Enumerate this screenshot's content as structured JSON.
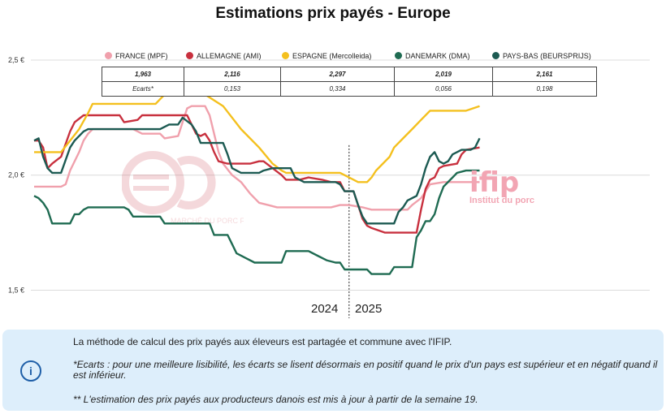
{
  "title": "Estimations prix payés - Europe",
  "chart_data": {
    "type": "line",
    "title": "Estimations prix payés - Europe",
    "y_ticks": [
      "2,5 €",
      "2,0 €",
      "1,5 €"
    ],
    "ylim": [
      1.35,
      2.62
    ],
    "x_range": [
      0,
      100
    ],
    "year_split": 70,
    "years": [
      "2024",
      "2025"
    ],
    "series": [
      {
        "name": "FRANCE (MPF)",
        "color": "#f0a0ac",
        "points": [
          [
            0,
            1.95
          ],
          [
            6,
            1.95
          ],
          [
            7,
            1.96
          ],
          [
            8,
            2.02
          ],
          [
            10,
            2.1
          ],
          [
            11,
            2.15
          ],
          [
            12,
            2.18
          ],
          [
            13,
            2.2
          ],
          [
            22,
            2.2
          ],
          [
            24,
            2.18
          ],
          [
            28,
            2.18
          ],
          [
            29,
            2.16
          ],
          [
            32,
            2.17
          ],
          [
            33,
            2.23
          ],
          [
            34,
            2.29
          ],
          [
            35,
            2.3
          ],
          [
            38,
            2.3
          ],
          [
            39,
            2.26
          ],
          [
            40,
            2.18
          ],
          [
            41,
            2.1
          ],
          [
            42,
            2.05
          ],
          [
            44,
            2.0
          ],
          [
            46,
            1.97
          ],
          [
            48,
            1.92
          ],
          [
            50,
            1.88
          ],
          [
            52,
            1.87
          ],
          [
            54,
            1.86
          ],
          [
            66,
            1.86
          ],
          [
            68,
            1.87
          ],
          [
            70,
            1.87
          ],
          [
            73,
            1.86
          ],
          [
            75,
            1.85
          ],
          [
            83,
            1.85
          ],
          [
            84,
            1.87
          ],
          [
            86,
            1.9
          ],
          [
            87,
            1.93
          ],
          [
            88,
            1.96
          ],
          [
            91,
            1.97
          ],
          [
            99,
            1.97
          ]
        ]
      },
      {
        "name": "ALLEMAGNE (AMI)",
        "color": "#c8303e",
        "points": [
          [
            0,
            2.15
          ],
          [
            1,
            2.15
          ],
          [
            2,
            2.12
          ],
          [
            3,
            2.03
          ],
          [
            4,
            2.05
          ],
          [
            6,
            2.08
          ],
          [
            8,
            2.19
          ],
          [
            9,
            2.23
          ],
          [
            11,
            2.26
          ],
          [
            19,
            2.26
          ],
          [
            20,
            2.23
          ],
          [
            23,
            2.24
          ],
          [
            24,
            2.26
          ],
          [
            34,
            2.26
          ],
          [
            35,
            2.22
          ],
          [
            36,
            2.18
          ],
          [
            37,
            2.17
          ],
          [
            38,
            2.18
          ],
          [
            39,
            2.15
          ],
          [
            40,
            2.1
          ],
          [
            41,
            2.06
          ],
          [
            43,
            2.05
          ],
          [
            47,
            2.05
          ],
          [
            48,
            2.05
          ],
          [
            50,
            2.06
          ],
          [
            51,
            2.06
          ],
          [
            53,
            2.03
          ],
          [
            55,
            2.0
          ],
          [
            56,
            1.98
          ],
          [
            59,
            1.98
          ],
          [
            61,
            1.99
          ],
          [
            64,
            1.98
          ],
          [
            66,
            1.97
          ],
          [
            68,
            1.97
          ],
          [
            69,
            1.93
          ],
          [
            71,
            1.93
          ],
          [
            72,
            1.87
          ],
          [
            73,
            1.81
          ],
          [
            74,
            1.78
          ],
          [
            75,
            1.77
          ],
          [
            78,
            1.75
          ],
          [
            85,
            1.75
          ],
          [
            86,
            1.85
          ],
          [
            87,
            1.94
          ],
          [
            88,
            1.98
          ],
          [
            89,
            1.99
          ],
          [
            90,
            2.03
          ],
          [
            91,
            2.04
          ],
          [
            94,
            2.05
          ],
          [
            95,
            2.09
          ],
          [
            96,
            2.11
          ],
          [
            99,
            2.12
          ]
        ]
      },
      {
        "name": "ESPAGNE (Mercolleida)",
        "color": "#f4c01e",
        "points": [
          [
            0,
            2.1
          ],
          [
            4,
            2.1
          ],
          [
            6,
            2.1
          ],
          [
            8,
            2.15
          ],
          [
            10,
            2.2
          ],
          [
            12,
            2.27
          ],
          [
            13,
            2.31
          ],
          [
            22,
            2.31
          ],
          [
            23,
            2.31
          ],
          [
            27,
            2.31
          ],
          [
            28,
            2.33
          ],
          [
            30,
            2.37
          ],
          [
            32,
            2.38
          ],
          [
            34,
            2.38
          ],
          [
            37,
            2.38
          ],
          [
            38,
            2.35
          ],
          [
            42,
            2.3
          ],
          [
            46,
            2.2
          ],
          [
            50,
            2.12
          ],
          [
            53,
            2.05
          ],
          [
            55,
            2.02
          ],
          [
            56,
            2.01
          ],
          [
            66,
            2.01
          ],
          [
            68,
            2.01
          ],
          [
            70,
            1.99
          ],
          [
            72,
            1.97
          ],
          [
            74,
            1.97
          ],
          [
            75,
            1.99
          ],
          [
            76,
            2.02
          ],
          [
            79,
            2.08
          ],
          [
            80,
            2.12
          ],
          [
            82,
            2.16
          ],
          [
            84,
            2.2
          ],
          [
            86,
            2.24
          ],
          [
            88,
            2.28
          ],
          [
            92,
            2.28
          ],
          [
            96,
            2.28
          ],
          [
            99,
            2.3
          ]
        ]
      },
      {
        "name": "DANEMARK (DMA)",
        "color": "#1f6b52",
        "points": [
          [
            0,
            1.91
          ],
          [
            1,
            1.9
          ],
          [
            2,
            1.88
          ],
          [
            3,
            1.85
          ],
          [
            4,
            1.79
          ],
          [
            8,
            1.79
          ],
          [
            9,
            1.83
          ],
          [
            10,
            1.83
          ],
          [
            11,
            1.85
          ],
          [
            12,
            1.86
          ],
          [
            20,
            1.86
          ],
          [
            21,
            1.85
          ],
          [
            22,
            1.82
          ],
          [
            28,
            1.82
          ],
          [
            29,
            1.79
          ],
          [
            33,
            1.79
          ],
          [
            34,
            1.79
          ],
          [
            39,
            1.79
          ],
          [
            40,
            1.74
          ],
          [
            43,
            1.74
          ],
          [
            44,
            1.7
          ],
          [
            45,
            1.66
          ],
          [
            47,
            1.64
          ],
          [
            49,
            1.62
          ],
          [
            55,
            1.62
          ],
          [
            56,
            1.67
          ],
          [
            61,
            1.67
          ],
          [
            63,
            1.65
          ],
          [
            65,
            1.63
          ],
          [
            67,
            1.62
          ],
          [
            68,
            1.62
          ],
          [
            69,
            1.59
          ],
          [
            72,
            1.59
          ],
          [
            74,
            1.59
          ],
          [
            75,
            1.57
          ],
          [
            79,
            1.57
          ],
          [
            80,
            1.6
          ],
          [
            84,
            1.6
          ],
          [
            85,
            1.73
          ],
          [
            86,
            1.76
          ],
          [
            87,
            1.8
          ],
          [
            88,
            1.8
          ],
          [
            89,
            1.83
          ],
          [
            90,
            1.9
          ],
          [
            91,
            1.95
          ],
          [
            93,
            1.99
          ],
          [
            94,
            2.01
          ],
          [
            96,
            2.02
          ],
          [
            98,
            2.02
          ],
          [
            99,
            2.02
          ]
        ]
      },
      {
        "name": "PAYS-BAS (BEURSPRIJS)",
        "color": "#1c5a52",
        "points": [
          [
            0,
            2.15
          ],
          [
            1,
            2.16
          ],
          [
            2,
            2.08
          ],
          [
            3,
            2.03
          ],
          [
            4,
            2.01
          ],
          [
            6,
            2.01
          ],
          [
            8,
            2.12
          ],
          [
            9,
            2.15
          ],
          [
            11,
            2.19
          ],
          [
            12,
            2.2
          ],
          [
            28,
            2.2
          ],
          [
            30,
            2.22
          ],
          [
            32,
            2.22
          ],
          [
            33,
            2.25
          ],
          [
            35,
            2.22
          ],
          [
            36,
            2.19
          ],
          [
            37,
            2.14
          ],
          [
            39,
            2.14
          ],
          [
            42,
            2.14
          ],
          [
            43,
            2.09
          ],
          [
            44,
            2.03
          ],
          [
            46,
            2.01
          ],
          [
            50,
            2.01
          ],
          [
            51,
            2.02
          ],
          [
            53,
            2.03
          ],
          [
            55,
            2.03
          ],
          [
            57,
            2.03
          ],
          [
            58,
            1.99
          ],
          [
            60,
            1.97
          ],
          [
            63,
            1.97
          ],
          [
            65,
            1.97
          ],
          [
            67,
            1.97
          ],
          [
            68,
            1.96
          ],
          [
            69,
            1.93
          ],
          [
            71,
            1.93
          ],
          [
            72,
            1.87
          ],
          [
            73,
            1.82
          ],
          [
            74,
            1.79
          ],
          [
            80,
            1.79
          ],
          [
            81,
            1.84
          ],
          [
            82,
            1.86
          ],
          [
            83,
            1.89
          ],
          [
            85,
            1.91
          ],
          [
            86,
            1.96
          ],
          [
            87,
            2.03
          ],
          [
            88,
            2.08
          ],
          [
            89,
            2.1
          ],
          [
            90,
            2.06
          ],
          [
            91,
            2.05
          ],
          [
            92,
            2.06
          ],
          [
            93,
            2.09
          ],
          [
            95,
            2.11
          ],
          [
            97,
            2.11
          ],
          [
            98,
            2.12
          ],
          [
            99,
            2.16
          ]
        ]
      }
    ]
  },
  "legend": [
    {
      "label": "FRANCE (MPF)",
      "color": "#f0a0ac"
    },
    {
      "label": "ALLEMAGNE (AMI)",
      "color": "#c8303e"
    },
    {
      "label": "ESPAGNE (Mercolleida)",
      "color": "#f4c01e"
    },
    {
      "label": "DANEMARK (DMA)",
      "color": "#1f6b52"
    },
    {
      "label": "PAYS-BAS (BEURSPRIJS)",
      "color": "#1c5a52"
    }
  ],
  "table": {
    "values": [
      "1,963",
      "2,116",
      "2,297",
      "2,019",
      "2,161"
    ],
    "ecarts_label": "Ecarts*",
    "ecarts": [
      "",
      "0,153",
      "0,334",
      "0,056",
      "0,198"
    ]
  },
  "watermark_text": "MARCHÉ DU PORC FRANÇAIS",
  "logo": {
    "name": "ifip",
    "tagline": "Institut du porc"
  },
  "note": {
    "line1": "La méthode de calcul des prix payés aux éleveurs est partagée et commune avec l'IFIP.",
    "line2": "*Ecarts : pour une meilleure lisibilité, les écarts se lisent désormais en positif quand le prix d'un pays est supérieur et en négatif quand il est inférieur.",
    "line3": "** L'estimation des prix payés aux producteurs danois est mis à jour à partir de la semaine 19."
  }
}
